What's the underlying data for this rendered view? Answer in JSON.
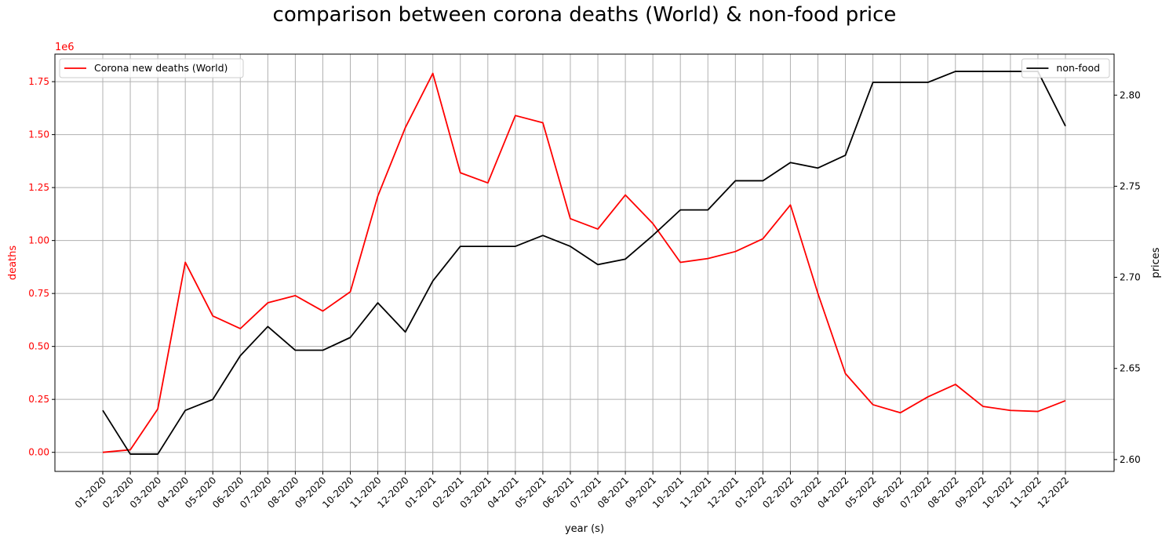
{
  "chart_data": {
    "type": "line",
    "title": "comparison between corona deaths (World) & non-food price",
    "xlabel": "year (s)",
    "ylabel_left": "deaths",
    "ylabel_right": "prices",
    "left_axis_offset_text": "1e6",
    "categories": [
      "01-2020",
      "02-2020",
      "03-2020",
      "04-2020",
      "05-2020",
      "06-2020",
      "07-2020",
      "08-2020",
      "09-2020",
      "10-2020",
      "11-2020",
      "12-2020",
      "01-2021",
      "02-2021",
      "03-2021",
      "04-2021",
      "05-2021",
      "06-2021",
      "07-2021",
      "08-2021",
      "09-2021",
      "10-2021",
      "11-2021",
      "12-2021",
      "01-2022",
      "02-2022",
      "03-2022",
      "04-2022",
      "05-2022",
      "06-2022",
      "07-2022",
      "08-2022",
      "09-2022",
      "10-2022",
      "11-2022",
      "12-2022"
    ],
    "left_ticks": [
      "0.00",
      "0.25",
      "0.50",
      "0.75",
      "1.00",
      "1.25",
      "1.50",
      "1.75"
    ],
    "left_tick_values": [
      0,
      0.25,
      0.5,
      0.75,
      1.0,
      1.25,
      1.5,
      1.75
    ],
    "right_ticks": [
      "2.60",
      "2.65",
      "2.70",
      "2.75",
      "2.80"
    ],
    "right_tick_values": [
      2.6,
      2.65,
      2.7,
      2.75,
      2.8
    ],
    "left_ylim": [
      -0.09,
      1.88
    ],
    "right_ylim": [
      2.5935,
      2.8225
    ],
    "grid": true,
    "series": [
      {
        "name": "Corona new deaths (World)",
        "axis": "left",
        "color": "#ff0000",
        "legend_position": "upper-left",
        "values": [
          0.0,
          0.012,
          0.205,
          0.897,
          0.644,
          0.584,
          0.706,
          0.74,
          0.667,
          0.758,
          1.21,
          1.533,
          1.789,
          1.32,
          1.272,
          1.59,
          1.556,
          1.103,
          1.054,
          1.215,
          1.08,
          0.897,
          0.915,
          0.948,
          1.008,
          1.168,
          0.75,
          0.372,
          0.225,
          0.187,
          0.262,
          0.321,
          0.217,
          0.198,
          0.193,
          0.244
        ]
      },
      {
        "name": "non-food",
        "axis": "right",
        "color": "#000000",
        "legend_position": "upper-right",
        "values": [
          2.627,
          2.603,
          2.603,
          2.627,
          2.633,
          2.657,
          2.673,
          2.66,
          2.66,
          2.667,
          2.686,
          2.67,
          2.698,
          2.717,
          2.717,
          2.717,
          2.723,
          2.717,
          2.707,
          2.71,
          2.723,
          2.737,
          2.737,
          2.753,
          2.753,
          2.763,
          2.76,
          2.767,
          2.807,
          2.807,
          2.807,
          2.813,
          2.813,
          2.813,
          2.813,
          2.783
        ]
      }
    ]
  }
}
